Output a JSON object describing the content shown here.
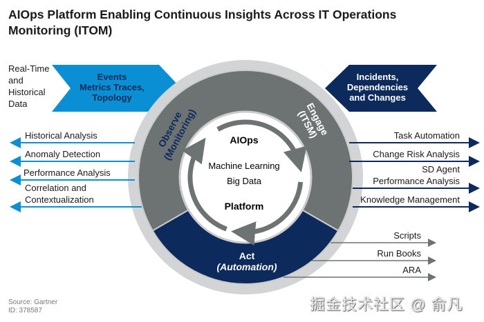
{
  "title": "AIOps Platform Enabling Continuous Insights Across IT Operations Monitoring (ITOM)",
  "input_label": [
    "Real-Time",
    "and",
    "Historical",
    "Data"
  ],
  "input_banner": [
    "Events",
    "Metrics Traces,",
    "Topology"
  ],
  "output_banner": [
    "Incidents,",
    "Dependencies",
    "and Changes"
  ],
  "segments": {
    "observe": {
      "lines": [
        "Observe",
        "(Monitoring)"
      ],
      "color": "#0a8fd4"
    },
    "engage": {
      "lines": [
        "Engage",
        "(ITSM)"
      ],
      "color": "#0c2b5c"
    },
    "act": {
      "lines": [
        "Act",
        "(Automation)"
      ],
      "color": "#6d7273"
    }
  },
  "center": {
    "top": "AIOps",
    "mid1": "Machine Learning",
    "mid2": "Big Data",
    "bottom": "Platform"
  },
  "observe_outputs": [
    [
      "Historical Analysis"
    ],
    [
      "Anomaly Detection"
    ],
    [
      "Performance Analysis"
    ],
    [
      "Correlation and",
      "Contextualization"
    ]
  ],
  "engage_outputs": [
    [
      "Task Automation"
    ],
    [
      "Change Risk Analysis"
    ],
    [
      "SD Agent",
      "Performance Analysis"
    ],
    [
      "Knowledge Management"
    ]
  ],
  "act_outputs": [
    "Scripts",
    "Run Books",
    "ARA"
  ],
  "footer": {
    "source": "Source: Gartner",
    "id": "ID: 378587"
  },
  "watermark": "掘金技术社区 @ 俞凡"
}
